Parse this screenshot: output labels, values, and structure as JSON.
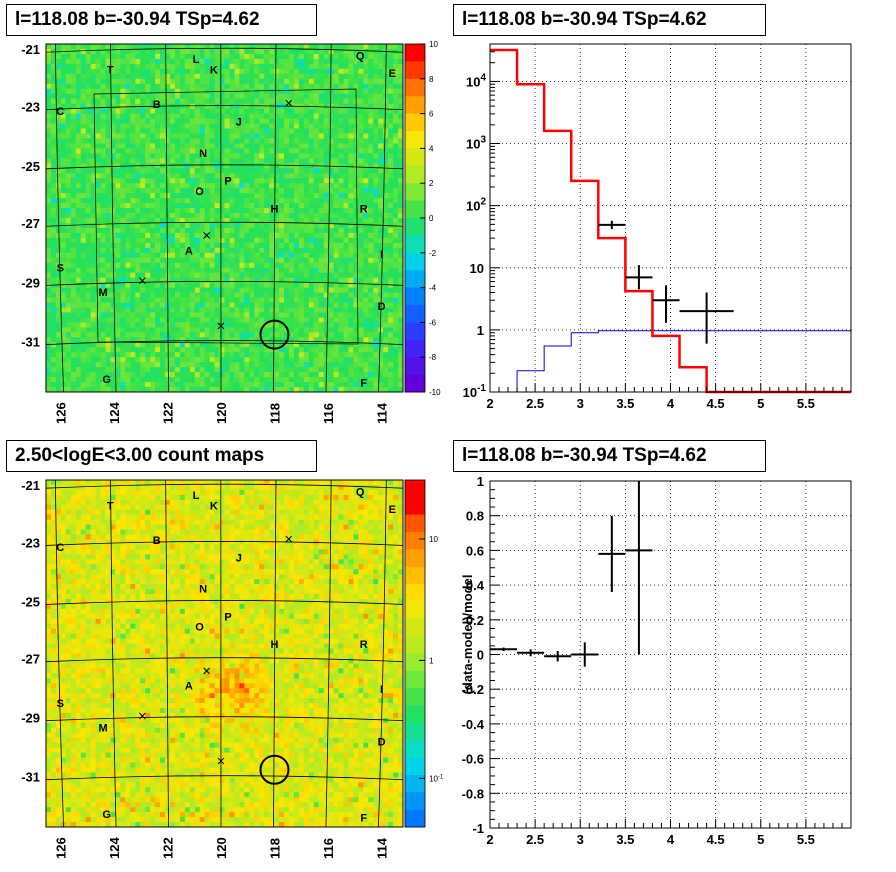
{
  "panels": {
    "tl_title": "l=118.08 b=-30.94 TSp=4.62",
    "tr_title": "l=118.08 b=-30.94 TSp=4.62",
    "bl_title": "2.50<logE<3.00 count maps",
    "br_title": "l=118.08 b=-30.94 TSp=4.62"
  },
  "colors": {
    "model_red": "#ff0000",
    "background_blue": "#0000cc",
    "data_black": "#000000",
    "residual_map_green": "#2ee04a",
    "count_map_orange": "#f08a28"
  },
  "chart_data": [
    {
      "type": "heatmap",
      "name": "residual significance map",
      "x_ticks": [
        "126",
        "124",
        "122",
        "120",
        "118",
        "116",
        "114"
      ],
      "y_ticks": [
        "-21",
        "-23",
        "-25",
        "-27",
        "-29",
        "-31"
      ],
      "colorbar": {
        "range": [
          -10,
          10
        ],
        "ticks": [
          "10",
          "8",
          "6",
          "4",
          "2",
          "0",
          "-2",
          "-4",
          "-6",
          "-8",
          "-10"
        ]
      },
      "sources": [
        "T",
        "L",
        "K",
        "Q",
        "E",
        "C",
        "B",
        "J",
        "N",
        "O",
        "P",
        "H",
        "R",
        "S",
        "I",
        "A",
        "M",
        "D",
        "G",
        "F"
      ],
      "target_circle": {
        "l": 118.08,
        "b": -30.94
      }
    },
    {
      "type": "line",
      "name": "counts spectrum",
      "x_ticks": [
        "2",
        "2.5",
        "3",
        "3.5",
        "4",
        "4.5",
        "5",
        "5.5"
      ],
      "y_ticks": [
        "10^-1",
        "1",
        "10",
        "10^2",
        "10^3",
        "10^4"
      ],
      "xlim": [
        2,
        6
      ],
      "ylim": [
        0.1,
        40000
      ],
      "yscale": "log",
      "grid": true,
      "model_total": {
        "edges": [
          2,
          2.3,
          2.6,
          2.9,
          3.2,
          3.5,
          3.8,
          4.1,
          4.4,
          6
        ],
        "values": [
          32000,
          9000,
          1600,
          250,
          30,
          4.2,
          0.8,
          0.25,
          0.1
        ]
      },
      "background": {
        "edges": [
          2,
          2.3,
          2.6,
          2.9,
          3.2,
          6
        ],
        "values": [
          0.1,
          0.22,
          0.55,
          0.9,
          0.97
        ]
      },
      "data_points": [
        {
          "x": 3.35,
          "xerr": 0.15,
          "y": 49,
          "ylo": 42,
          "yhi": 57
        },
        {
          "x": 3.65,
          "xerr": 0.15,
          "y": 7,
          "ylo": 4.5,
          "yhi": 11
        },
        {
          "x": 3.95,
          "xerr": 0.15,
          "y": 3,
          "ylo": 1.3,
          "yhi": 5.2
        },
        {
          "x": 4.4,
          "xerr": 0.3,
          "y": 2,
          "ylo": 0.6,
          "yhi": 4
        }
      ]
    },
    {
      "type": "heatmap",
      "name": "count map",
      "x_ticks": [
        "126",
        "124",
        "122",
        "120",
        "118",
        "116",
        "114"
      ],
      "y_ticks": [
        "-21",
        "-23",
        "-25",
        "-27",
        "-29",
        "-31"
      ],
      "colorbar": {
        "scale": "log",
        "ticks": [
          "10",
          "1",
          "10^-1"
        ]
      },
      "sources": [
        "T",
        "L",
        "K",
        "Q",
        "E",
        "C",
        "B",
        "J",
        "N",
        "O",
        "P",
        "H",
        "R",
        "S",
        "I",
        "A",
        "M",
        "D",
        "G",
        "F"
      ],
      "target_circle": {
        "l": 118.08,
        "b": -30.94
      }
    },
    {
      "type": "scatter",
      "name": "residuals",
      "ylabel": "(data-model)/model",
      "x_ticks": [
        "2",
        "2.5",
        "3",
        "3.5",
        "4",
        "4.5",
        "5",
        "5.5"
      ],
      "y_ticks": [
        "1",
        "0.8",
        "0.6",
        "0.4",
        "0.2",
        "0",
        "-0.2",
        "-0.4",
        "-0.6",
        "-0.8",
        "-1"
      ],
      "xlim": [
        2,
        6
      ],
      "ylim": [
        -1,
        1
      ],
      "grid": true,
      "points": [
        {
          "x": 2.15,
          "xerr": 0.15,
          "y": 0.03,
          "yerr": 0.01
        },
        {
          "x": 2.45,
          "xerr": 0.15,
          "y": 0.01,
          "yerr": 0.02
        },
        {
          "x": 2.75,
          "xerr": 0.15,
          "y": -0.01,
          "yerr": 0.03
        },
        {
          "x": 3.05,
          "xerr": 0.15,
          "y": 0.0,
          "yerr": 0.07
        },
        {
          "x": 3.35,
          "xerr": 0.15,
          "y": 0.58,
          "yerr": 0.22
        },
        {
          "x": 3.65,
          "xerr": 0.15,
          "y": 0.6,
          "yerr": 0.6
        }
      ]
    }
  ]
}
